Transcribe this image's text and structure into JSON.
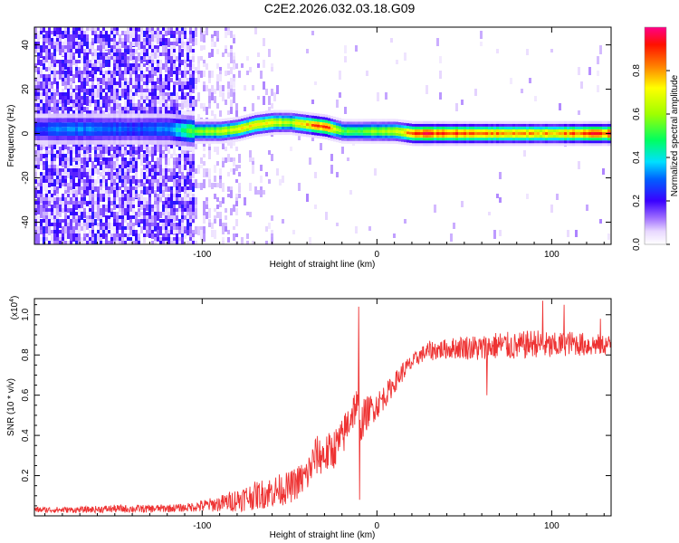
{
  "title": "C2E2.2026.032.03.18.G09",
  "chart_data": [
    {
      "type": "heatmap",
      "xlabel": "Height of straight line (km)",
      "ylabel": "Frequency (Hz)",
      "xlim": [
        -196,
        134
      ],
      "ylim": [
        -50,
        48
      ],
      "x_ticks": [
        -100,
        0,
        100
      ],
      "x_tick_labels": [
        "-100",
        "0",
        "100"
      ],
      "y_ticks": [
        -40,
        -20,
        0,
        20,
        40
      ],
      "y_tick_labels": [
        "-40",
        "-20",
        "0",
        "20",
        "40"
      ],
      "colorbar": {
        "label": "Normalized spectral amplitude",
        "range": [
          0.0,
          1.0
        ],
        "ticks": [
          0.0,
          0.2,
          0.4,
          0.6,
          0.8
        ],
        "tick_labels": [
          "0.0",
          "0.2",
          "0.4",
          "0.6",
          "0.8"
        ]
      },
      "ridge": {
        "x": [
          -196,
          -180,
          -160,
          -140,
          -120,
          -105,
          -90,
          -80,
          -70,
          -60,
          -50,
          -40,
          -30,
          -25,
          -20,
          -10,
          0,
          10,
          20,
          40,
          60,
          80,
          100,
          120,
          134
        ],
        "freq": [
          2,
          2,
          2,
          2,
          2,
          1,
          1,
          2,
          4,
          5,
          5,
          4,
          3,
          2,
          1,
          1,
          1,
          1,
          0,
          0,
          0,
          0,
          0,
          0,
          0
        ],
        "amplitude": [
          0.3,
          0.35,
          0.35,
          0.3,
          0.35,
          0.6,
          0.7,
          0.75,
          0.8,
          0.75,
          0.7,
          0.85,
          0.95,
          0.8,
          0.6,
          0.6,
          0.65,
          0.7,
          0.98,
          0.95,
          0.9,
          0.85,
          0.85,
          0.95,
          0.98
        ]
      },
      "grid": false
    },
    {
      "type": "line",
      "xlabel": "Height of straight line (km)",
      "ylabel": "SNR (10 * v/v)",
      "y_multiplier_label": "(x10",
      "y_multiplier_exp": "4",
      "y_multiplier_suffix": ")",
      "xlim": [
        -196,
        134
      ],
      "ylim": [
        0.0,
        1.08
      ],
      "x_ticks": [
        -100,
        0,
        100
      ],
      "x_tick_labels": [
        "-100",
        "0",
        "100"
      ],
      "y_ticks": [
        0.2,
        0.4,
        0.6,
        0.8,
        1.0
      ],
      "y_tick_labels": [
        "0.2",
        "0.4",
        "0.6",
        "0.8",
        "1.0"
      ],
      "series": [
        {
          "color": "#ee3333",
          "x": [
            -196,
            -170,
            -150,
            -130,
            -110,
            -100,
            -90,
            -80,
            -70,
            -60,
            -50,
            -40,
            -35,
            -30,
            -25,
            -20,
            -15,
            -12,
            -10,
            -9,
            -8,
            -5,
            0,
            5,
            10,
            15,
            20,
            25,
            30,
            40,
            50,
            60,
            70,
            80,
            90,
            100,
            110,
            120,
            134
          ],
          "baseline": [
            0.03,
            0.03,
            0.035,
            0.035,
            0.04,
            0.05,
            0.06,
            0.08,
            0.1,
            0.12,
            0.14,
            0.2,
            0.3,
            0.3,
            0.33,
            0.38,
            0.5,
            0.55,
            0.5,
            0.45,
            0.48,
            0.52,
            0.55,
            0.6,
            0.66,
            0.72,
            0.76,
            0.8,
            0.82,
            0.83,
            0.84,
            0.83,
            0.85,
            0.84,
            0.86,
            0.84,
            0.86,
            0.85,
            0.85
          ],
          "noise": [
            0.015,
            0.015,
            0.02,
            0.02,
            0.02,
            0.03,
            0.04,
            0.06,
            0.07,
            0.08,
            0.08,
            0.09,
            0.1,
            0.1,
            0.1,
            0.1,
            0.1,
            0.1,
            0.1,
            0.1,
            0.1,
            0.08,
            0.07,
            0.06,
            0.05,
            0.05,
            0.04,
            0.04,
            0.05,
            0.05,
            0.06,
            0.07,
            0.07,
            0.07,
            0.07,
            0.07,
            0.06,
            0.06,
            0.05
          ],
          "spikes": [
            {
              "x": -10.5,
              "y": 1.04
            },
            {
              "x": -10.0,
              "y": 0.08
            },
            {
              "x": 95.0,
              "y": 1.07
            },
            {
              "x": 107.0,
              "y": 1.05
            },
            {
              "x": 128.0,
              "y": 0.98
            },
            {
              "x": 63.0,
              "y": 0.6
            }
          ]
        }
      ],
      "grid": false
    }
  ]
}
